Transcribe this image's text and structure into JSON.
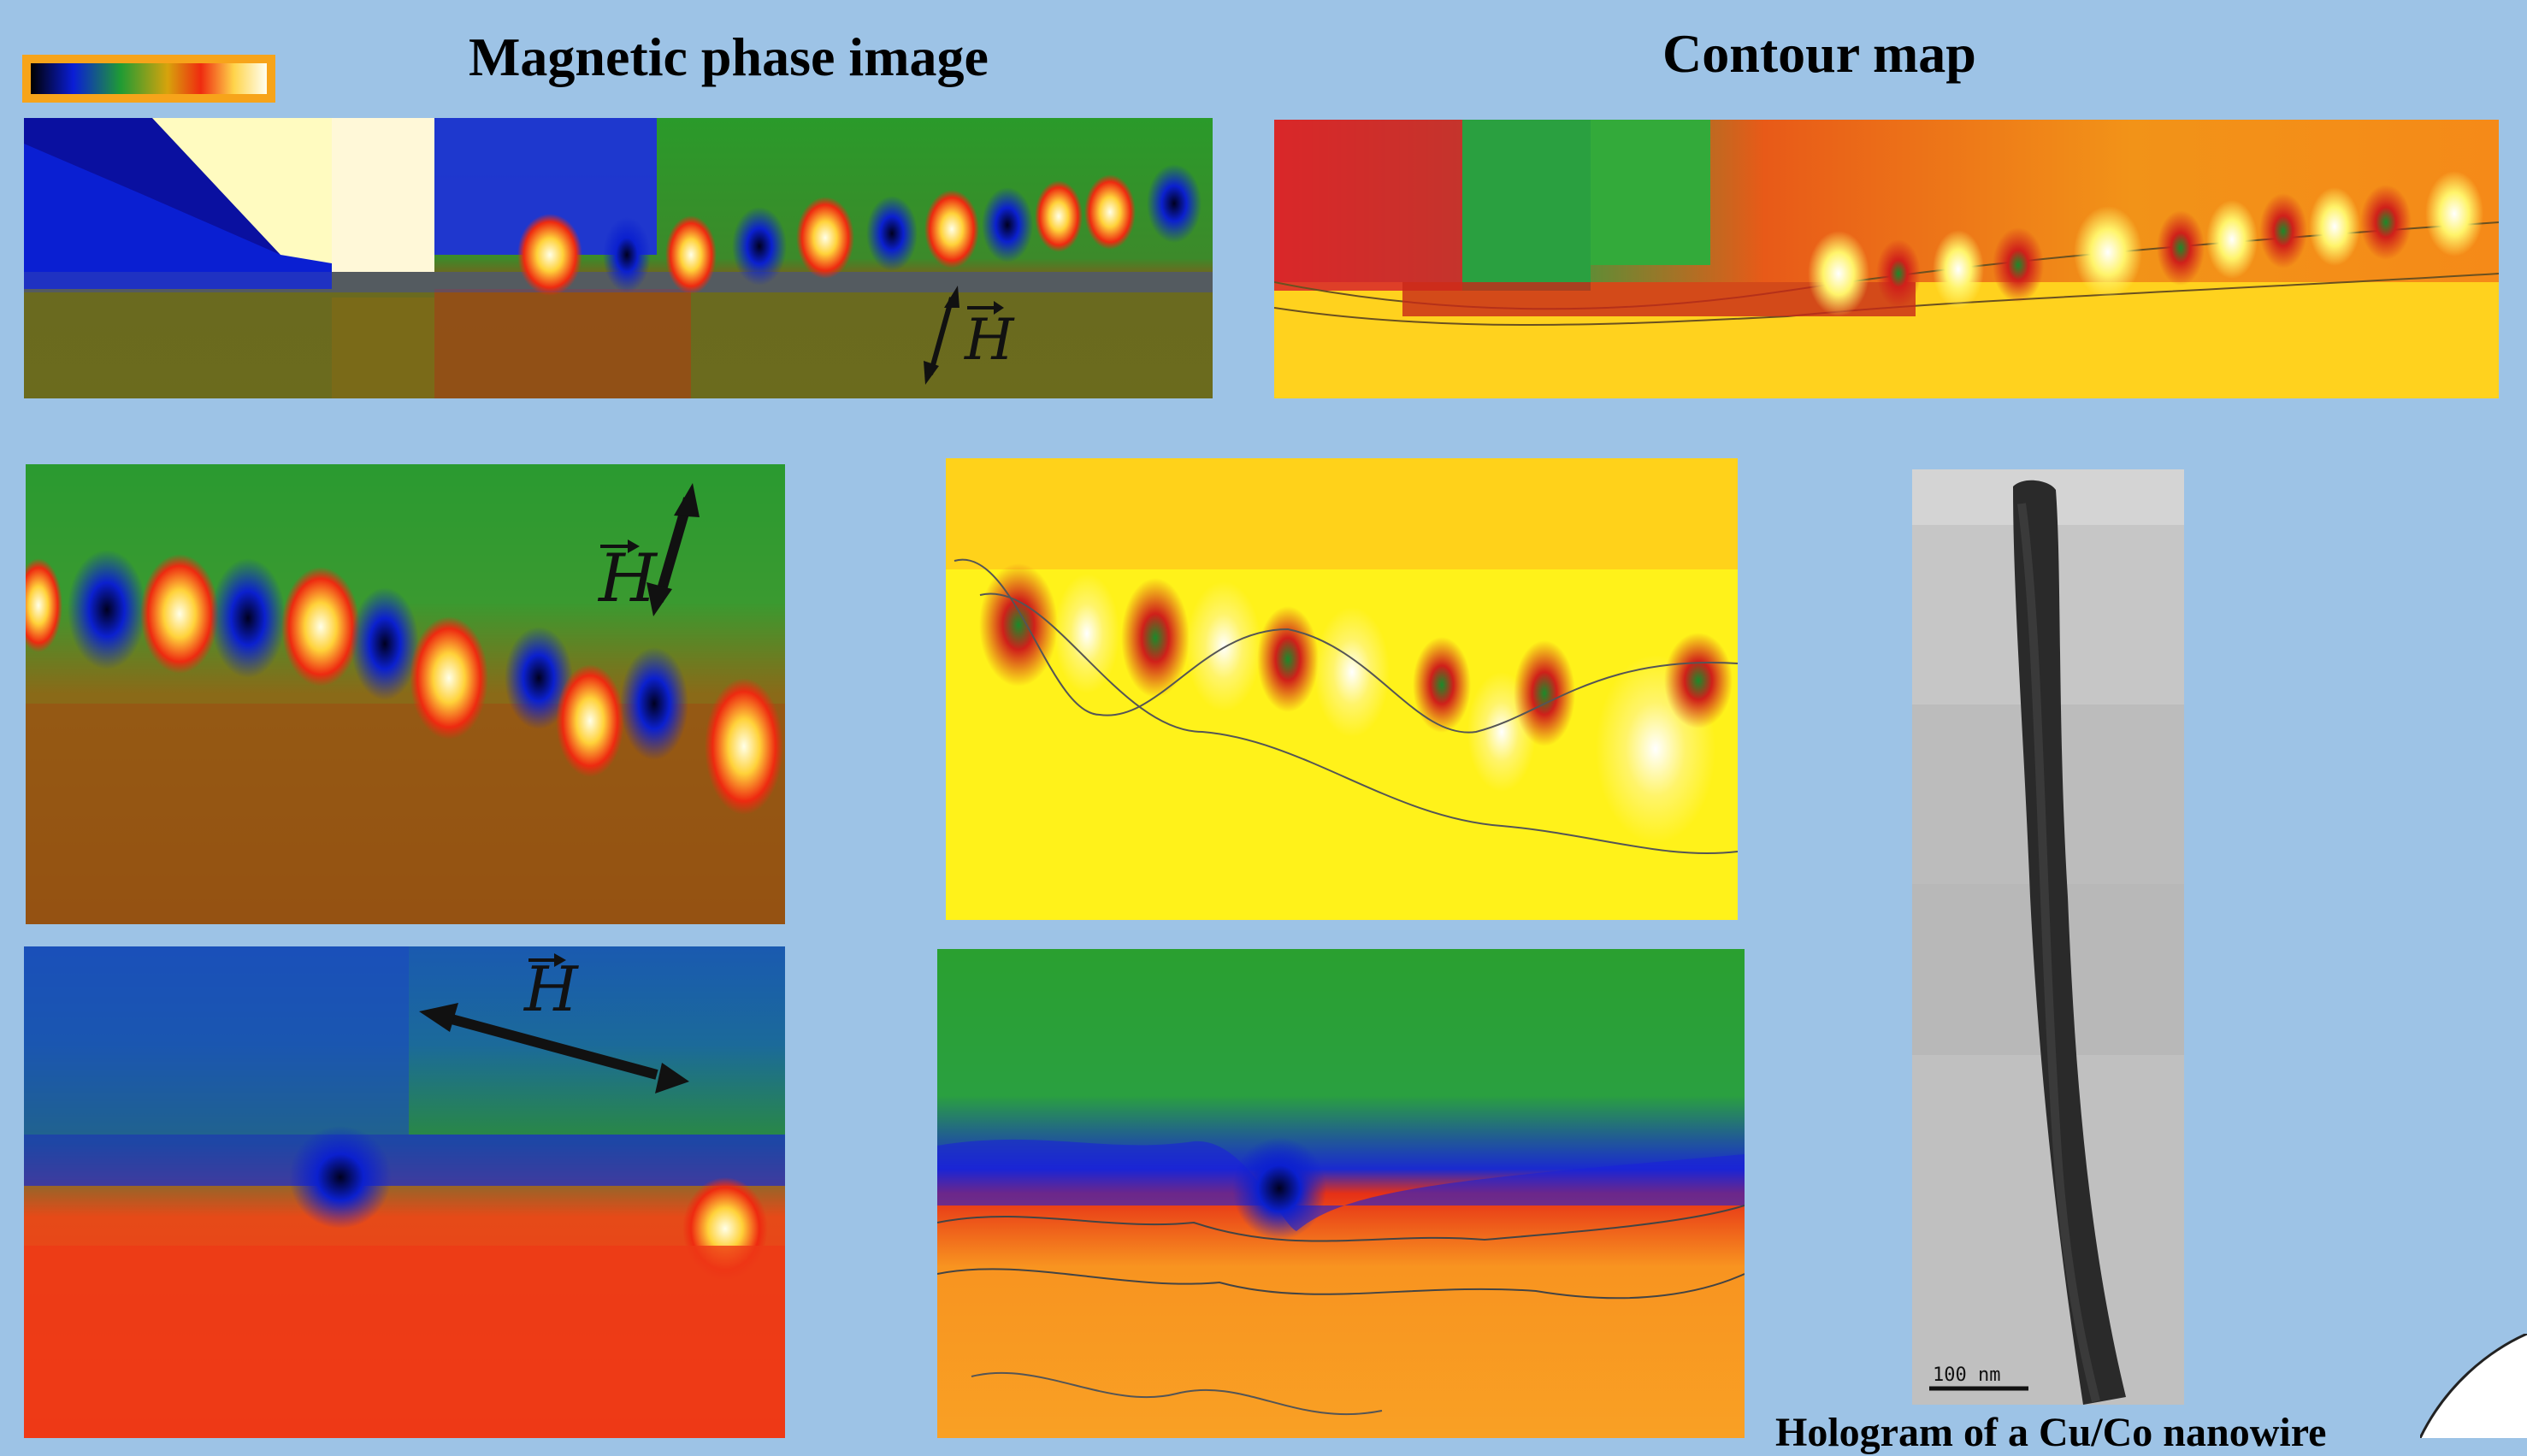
{
  "titles": {
    "left": "Magnetic phase image",
    "right": "Contour map"
  },
  "field_label": "H",
  "scale_bar": "100 nm",
  "caption": "Hologram of a Cu/Co nanowire",
  "colors": {
    "background": "#9dc3e6",
    "colorbar_frame": "#f7a41a"
  },
  "icons": {
    "field_arrow": "double-headed-arrow-icon",
    "colorbar": "phase-colorbar"
  }
}
